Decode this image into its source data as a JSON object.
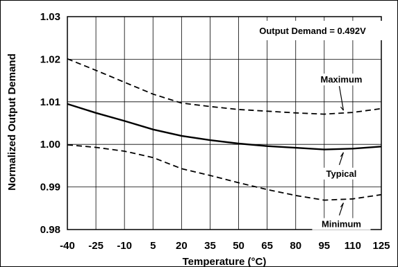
{
  "chart_data": {
    "type": "line",
    "title": "",
    "xlabel": "Temperature (°C)",
    "ylabel": "Normalized Output Demand",
    "xlim": [
      -40,
      125
    ],
    "ylim": [
      0.98,
      1.03
    ],
    "x_ticks": [
      -40,
      -25,
      -10,
      5,
      20,
      35,
      50,
      65,
      80,
      95,
      110,
      125
    ],
    "y_ticks": [
      0.98,
      0.99,
      1.0,
      1.01,
      1.02,
      1.03
    ],
    "y_tick_labels": [
      "0.98",
      "0.99",
      "1.00",
      "1.01",
      "1.02",
      "1.03"
    ],
    "grid": true,
    "annotation": "Output Demand = 0.492V",
    "series": [
      {
        "name": "Maximum",
        "style": "dashed",
        "color": "#000000",
        "x": [
          -40,
          -25,
          -10,
          5,
          20,
          35,
          50,
          65,
          80,
          95,
          110,
          125
        ],
        "y": [
          1.0201,
          1.0174,
          1.0146,
          1.0118,
          1.0097,
          1.0089,
          1.0082,
          1.0078,
          1.0074,
          1.0071,
          1.0075,
          1.0084
        ]
      },
      {
        "name": "Typical",
        "style": "solid",
        "color": "#000000",
        "x": [
          -40,
          -25,
          -10,
          5,
          20,
          35,
          50,
          65,
          80,
          95,
          110,
          125
        ],
        "y": [
          1.0095,
          1.0074,
          1.0055,
          1.0035,
          1.002,
          1.001,
          1.0002,
          0.9996,
          0.9992,
          0.9988,
          0.999,
          0.9995
        ]
      },
      {
        "name": "Minimum",
        "style": "dashed",
        "color": "#000000",
        "x": [
          -40,
          -25,
          -10,
          5,
          20,
          35,
          50,
          65,
          80,
          95,
          110,
          125
        ],
        "y": [
          0.9999,
          0.9993,
          0.9984,
          0.9969,
          0.9943,
          0.9927,
          0.991,
          0.9894,
          0.988,
          0.9869,
          0.9872,
          0.9882
        ]
      }
    ],
    "labels": [
      {
        "text": "Maximum",
        "series": "Maximum",
        "at_x": 104
      },
      {
        "text": "Typical",
        "series": "Typical",
        "at_x": 104
      },
      {
        "text": "Minimum",
        "series": "Minimum",
        "at_x": 104
      }
    ]
  }
}
